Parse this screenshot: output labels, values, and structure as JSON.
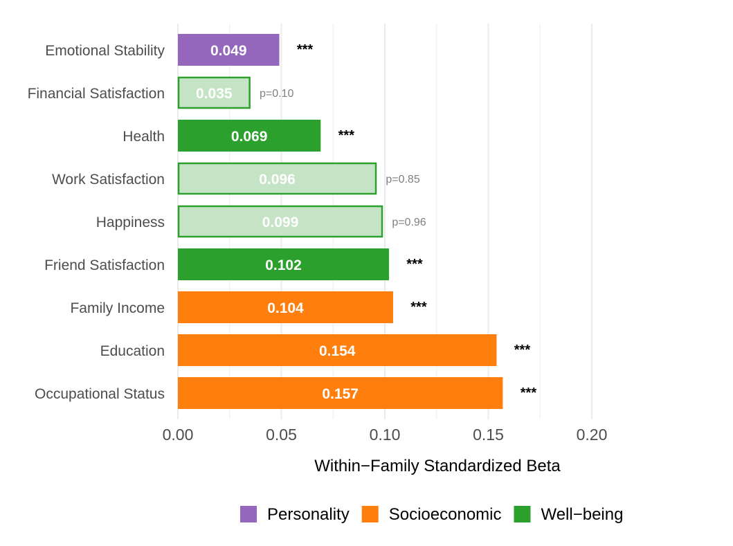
{
  "chart_data": {
    "type": "bar",
    "orientation": "horizontal",
    "title": "",
    "xlabel": "Within−Family Standardized Beta",
    "ylabel": "",
    "xlim": [
      0,
      0.22
    ],
    "x_ticks": [
      0,
      0.05,
      0.1,
      0.15,
      0.2
    ],
    "x_tick_labels": [
      "0.00",
      "0.05",
      "0.10",
      "0.15",
      "0.20"
    ],
    "grid": true,
    "legend_position": "bottom",
    "groups": [
      {
        "name": "Personality",
        "color": "#9467bd"
      },
      {
        "name": "Socioeconomic",
        "color": "#ff7f0e"
      },
      {
        "name": "Well−being",
        "color": "#2ca02c"
      }
    ],
    "bars": [
      {
        "category": "Emotional Stability",
        "value": 0.049,
        "label": "0.049",
        "group": "Personality",
        "significant": true,
        "annotation": "***"
      },
      {
        "category": "Financial Satisfaction",
        "value": 0.035,
        "label": "0.035",
        "group": "Well−being",
        "significant": false,
        "annotation": "p=0.10"
      },
      {
        "category": "Health",
        "value": 0.069,
        "label": "0.069",
        "group": "Well−being",
        "significant": true,
        "annotation": "***"
      },
      {
        "category": "Work Satisfaction",
        "value": 0.096,
        "label": "0.096",
        "group": "Well−being",
        "significant": false,
        "annotation": "p=0.85"
      },
      {
        "category": "Happiness",
        "value": 0.099,
        "label": "0.099",
        "group": "Well−being",
        "significant": false,
        "annotation": "p=0.96"
      },
      {
        "category": "Friend Satisfaction",
        "value": 0.102,
        "label": "0.102",
        "group": "Well−being",
        "significant": true,
        "annotation": "***"
      },
      {
        "category": "Family Income",
        "value": 0.104,
        "label": "0.104",
        "group": "Socioeconomic",
        "significant": true,
        "annotation": "***"
      },
      {
        "category": "Education",
        "value": 0.154,
        "label": "0.154",
        "group": "Socioeconomic",
        "significant": true,
        "annotation": "***"
      },
      {
        "category": "Occupational Status",
        "value": 0.157,
        "label": "0.157",
        "group": "Socioeconomic",
        "significant": true,
        "annotation": "***"
      }
    ],
    "nonsignificant_fill": "#c5e4c5",
    "significant_annotation_color": "#000000",
    "nonsignificant_annotation_color": "#7f7f7f"
  }
}
